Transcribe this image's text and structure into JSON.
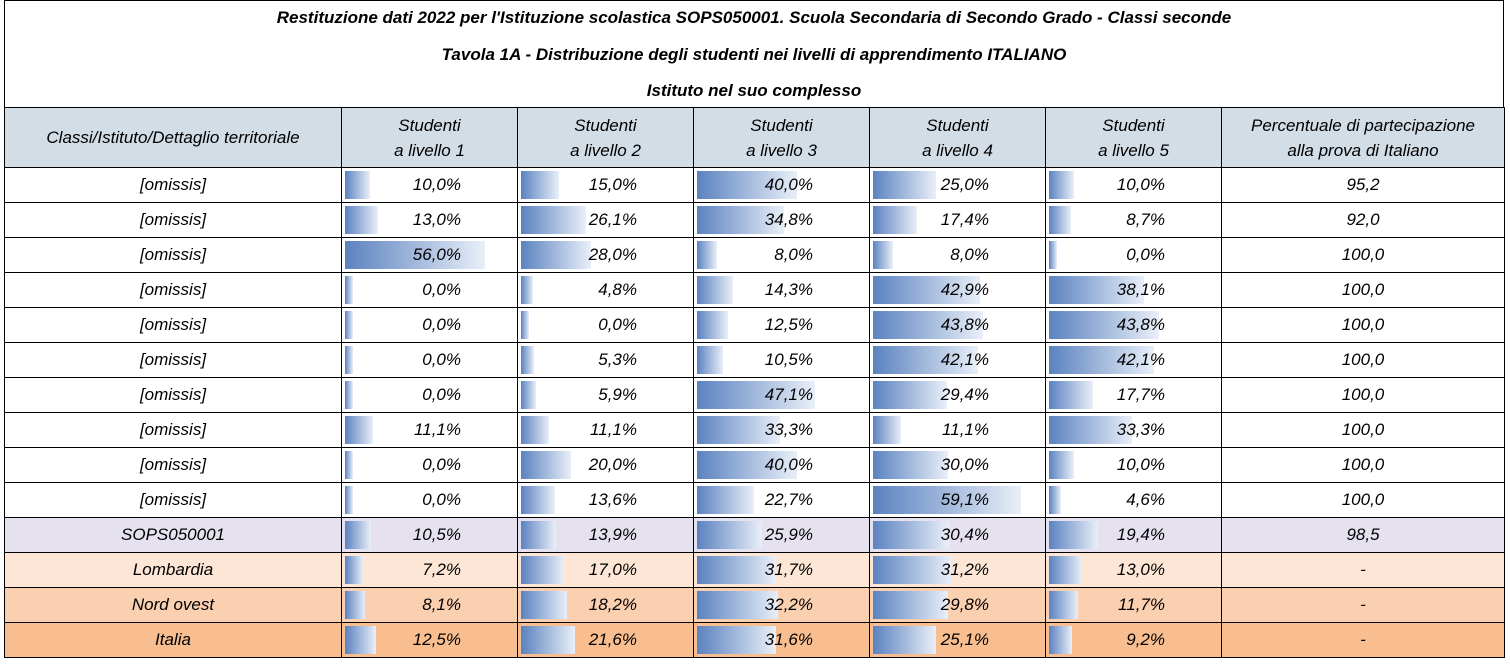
{
  "titles": {
    "line1": "Restituzione dati 2022 per l'Istituzione scolastica SOPS050001. Scuola Secondaria di Secondo Grado - Classi seconde",
    "line2": "Tavola 1A - Distribuzione degli studenti nei livelli di apprendimento ITALIANO",
    "line3": "Istituto nel suo complesso"
  },
  "headers": {
    "col0": "Classi/Istituto/Dettaglio territoriale",
    "levels": [
      {
        "l1": "Studenti",
        "l2": "a livello 1"
      },
      {
        "l1": "Studenti",
        "l2": "a livello 2"
      },
      {
        "l1": "Studenti",
        "l2": "a livello 3"
      },
      {
        "l1": "Studenti",
        "l2": "a livello 4"
      },
      {
        "l1": "Studenti",
        "l2": "a livello 5"
      }
    ],
    "part_l1": "Percentuale di partecipazione",
    "part_l2": "alla prova di Italiano"
  },
  "rows": [
    {
      "label": "[omissis]",
      "levels": [
        "10,0%",
        "15,0%",
        "40,0%",
        "25,0%",
        "10,0%"
      ],
      "part": "95,2"
    },
    {
      "label": "[omissis]",
      "levels": [
        "13,0%",
        "26,1%",
        "34,8%",
        "17,4%",
        "8,7%"
      ],
      "part": "92,0"
    },
    {
      "label": "[omissis]",
      "levels": [
        "56,0%",
        "28,0%",
        "8,0%",
        "8,0%",
        "0,0%"
      ],
      "part": "100,0"
    },
    {
      "label": "[omissis]",
      "levels": [
        "0,0%",
        "4,8%",
        "14,3%",
        "42,9%",
        "38,1%"
      ],
      "part": "100,0"
    },
    {
      "label": "[omissis]",
      "levels": [
        "0,0%",
        "0,0%",
        "12,5%",
        "43,8%",
        "43,8%"
      ],
      "part": "100,0"
    },
    {
      "label": "[omissis]",
      "levels": [
        "0,0%",
        "5,3%",
        "10,5%",
        "42,1%",
        "42,1%"
      ],
      "part": "100,0"
    },
    {
      "label": "[omissis]",
      "levels": [
        "0,0%",
        "5,9%",
        "47,1%",
        "29,4%",
        "17,7%"
      ],
      "part": "100,0"
    },
    {
      "label": "[omissis]",
      "levels": [
        "11,1%",
        "11,1%",
        "33,3%",
        "11,1%",
        "33,3%"
      ],
      "part": "100,0"
    },
    {
      "label": "[omissis]",
      "levels": [
        "0,0%",
        "20,0%",
        "40,0%",
        "30,0%",
        "10,0%"
      ],
      "part": "100,0"
    },
    {
      "label": "[omissis]",
      "levels": [
        "0,0%",
        "13,6%",
        "22,7%",
        "59,1%",
        "4,6%"
      ],
      "part": "100,0"
    },
    {
      "label": "SOPS050001",
      "levels": [
        "10,5%",
        "13,9%",
        "25,9%",
        "30,4%",
        "19,4%"
      ],
      "part": "98,5"
    },
    {
      "label": "Lombardia",
      "levels": [
        "7,2%",
        "17,0%",
        "31,7%",
        "31,2%",
        "13,0%"
      ],
      "part": "-"
    },
    {
      "label": "Nord ovest",
      "levels": [
        "8,1%",
        "18,2%",
        "32,2%",
        "29,8%",
        "11,7%"
      ],
      "part": "-"
    },
    {
      "label": "Italia",
      "levels": [
        "12,5%",
        "21,6%",
        "31,6%",
        "25,1%",
        "9,2%"
      ],
      "part": "-"
    }
  ],
  "colors": {
    "header_bg": "#d3dde6",
    "bar_start": "#5b82c0",
    "bar_end": "#e9eff8",
    "istituto_bg": "#e6e1ee",
    "lombardia_bg": "#fde6d6",
    "nordovest_bg": "#fbd0b1",
    "italia_bg": "#f8be90"
  }
}
